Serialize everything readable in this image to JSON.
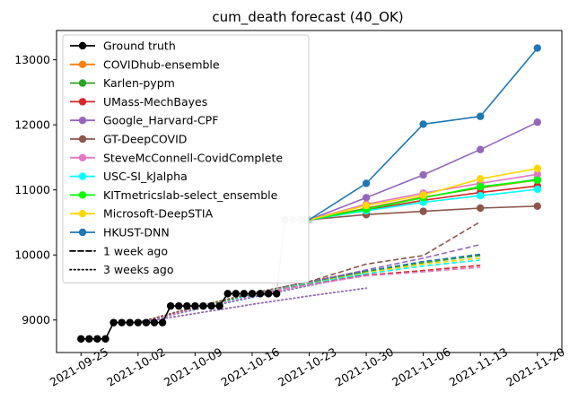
{
  "chart_data": {
    "type": "line",
    "title": "cum_death forecast (40_OK)",
    "xlabel": "",
    "ylabel": "",
    "x_ticks": [
      "2021-09-25",
      "2021-10-02",
      "2021-10-09",
      "2021-10-16",
      "2021-10-23",
      "2021-10-30",
      "2021-11-06",
      "2021-11-13",
      "2021-11-20"
    ],
    "y_ticks": [
      9000,
      10000,
      11000,
      12000,
      13000
    ],
    "xlim": [
      "2021-09-22",
      "2021-11-23"
    ],
    "ylim": [
      8500,
      13450
    ],
    "legend_position": "upper-left",
    "ground_truth": {
      "name": "Ground truth",
      "color": "#000000",
      "points": [
        [
          "2021-09-25",
          8710
        ],
        [
          "2021-09-26",
          8710
        ],
        [
          "2021-09-27",
          8710
        ],
        [
          "2021-09-28",
          8710
        ],
        [
          "2021-09-29",
          8960
        ],
        [
          "2021-09-30",
          8960
        ],
        [
          "2021-10-01",
          8960
        ],
        [
          "2021-10-02",
          8960
        ],
        [
          "2021-10-03",
          8960
        ],
        [
          "2021-10-04",
          8960
        ],
        [
          "2021-10-05",
          8960
        ],
        [
          "2021-10-06",
          9215
        ],
        [
          "2021-10-07",
          9215
        ],
        [
          "2021-10-08",
          9215
        ],
        [
          "2021-10-09",
          9215
        ],
        [
          "2021-10-10",
          9215
        ],
        [
          "2021-10-11",
          9215
        ],
        [
          "2021-10-12",
          9215
        ],
        [
          "2021-10-13",
          9405
        ],
        [
          "2021-10-14",
          9405
        ],
        [
          "2021-10-15",
          9405
        ],
        [
          "2021-10-16",
          9405
        ],
        [
          "2021-10-17",
          9405
        ],
        [
          "2021-10-18",
          9405
        ],
        [
          "2021-10-19",
          9405
        ]
      ]
    },
    "recent_truth": {
      "color": "#cccccc",
      "points": [
        [
          "2021-10-19",
          9405
        ],
        [
          "2021-10-20",
          10540
        ],
        [
          "2021-10-21",
          10540
        ],
        [
          "2021-10-22",
          10540
        ],
        [
          "2021-10-23",
          10540
        ]
      ]
    },
    "forecast_dates": [
      "2021-10-23",
      "2021-10-30",
      "2021-11-06",
      "2021-11-13",
      "2021-11-20"
    ],
    "series": [
      {
        "name": "COVIDhub-ensemble",
        "color": "#ff7f0e",
        "values": [
          10540,
          10720,
          10890,
          11030,
          11150
        ]
      },
      {
        "name": "Karlen-pypm",
        "color": "#2ca02c",
        "values": [
          10540,
          10710,
          10880,
          11040,
          11160
        ]
      },
      {
        "name": "UMass-MechBayes",
        "color": "#d62728",
        "values": [
          10540,
          10690,
          10840,
          10960,
          11060
        ]
      },
      {
        "name": "Google_Harvard-CPF",
        "color": "#9467bd",
        "values": [
          10540,
          10880,
          11230,
          11620,
          12040
        ]
      },
      {
        "name": "GT-DeepCOVID",
        "color": "#8c564b",
        "values": [
          10540,
          10620,
          10670,
          10720,
          10750
        ]
      },
      {
        "name": "SteveMcConnell-CovidComplete",
        "color": "#e377c2",
        "values": [
          10540,
          10780,
          10950,
          11100,
          11240
        ]
      },
      {
        "name": "USC-SI_kJalpha",
        "color": "#00ffff",
        "values": [
          10540,
          10680,
          10810,
          10910,
          11010
        ]
      },
      {
        "name": "KITmetricslab-select_ensemble",
        "color": "#00ff00",
        "values": [
          10540,
          10700,
          10880,
          11050,
          11150
        ]
      },
      {
        "name": "Microsoft-DeepSTIA",
        "color": "#ffd700",
        "values": [
          10540,
          10760,
          10920,
          11170,
          11330
        ]
      },
      {
        "name": "HKUST-DNN",
        "color": "#1f77b4",
        "values": [
          10540,
          11100,
          12010,
          12130,
          13180
        ]
      }
    ],
    "one_week_ago": [
      {
        "color": "#8c564b",
        "points": [
          [
            "2021-10-16",
            9400
          ],
          [
            "2021-10-23",
            9590
          ],
          [
            "2021-10-30",
            9860
          ],
          [
            "2021-11-06",
            9990
          ],
          [
            "2021-11-13",
            10510
          ]
        ]
      },
      {
        "color": "#9467bd",
        "points": [
          [
            "2021-10-16",
            9400
          ],
          [
            "2021-10-23",
            9580
          ],
          [
            "2021-10-30",
            9770
          ],
          [
            "2021-11-06",
            9950
          ],
          [
            "2021-11-13",
            10160
          ]
        ]
      },
      {
        "color": "#1f77b4",
        "points": [
          [
            "2021-10-16",
            9400
          ],
          [
            "2021-10-23",
            9570
          ],
          [
            "2021-10-30",
            9750
          ],
          [
            "2021-11-06",
            9900
          ],
          [
            "2021-11-13",
            10010
          ]
        ]
      },
      {
        "color": "#2ca02c",
        "points": [
          [
            "2021-10-16",
            9400
          ],
          [
            "2021-10-23",
            9565
          ],
          [
            "2021-10-30",
            9740
          ],
          [
            "2021-11-06",
            9880
          ],
          [
            "2021-11-13",
            9990
          ]
        ]
      },
      {
        "color": "#ffd700",
        "points": [
          [
            "2021-10-16",
            9400
          ],
          [
            "2021-10-23",
            9560
          ],
          [
            "2021-10-30",
            9725
          ],
          [
            "2021-11-06",
            9860
          ],
          [
            "2021-11-13",
            9950
          ]
        ]
      },
      {
        "color": "#00ffff",
        "points": [
          [
            "2021-10-16",
            9400
          ],
          [
            "2021-10-23",
            9555
          ],
          [
            "2021-10-30",
            9710
          ],
          [
            "2021-11-06",
            9830
          ],
          [
            "2021-11-13",
            9920
          ]
        ]
      },
      {
        "color": "#d62728",
        "points": [
          [
            "2021-10-16",
            9400
          ],
          [
            "2021-10-23",
            9545
          ],
          [
            "2021-10-30",
            9690
          ],
          [
            "2021-11-06",
            9760
          ],
          [
            "2021-11-13",
            9840
          ]
        ]
      },
      {
        "color": "#e377c2",
        "points": [
          [
            "2021-10-16",
            9400
          ],
          [
            "2021-10-23",
            9540
          ],
          [
            "2021-10-30",
            9680
          ],
          [
            "2021-11-06",
            9740
          ],
          [
            "2021-11-13",
            9810
          ]
        ]
      }
    ],
    "three_weeks_ago": [
      {
        "color": "#9467bd",
        "points": [
          [
            "2021-10-02",
            8960
          ],
          [
            "2021-10-09",
            9100
          ],
          [
            "2021-10-16",
            9240
          ],
          [
            "2021-10-23",
            9370
          ],
          [
            "2021-10-30",
            9490
          ]
        ]
      },
      {
        "color": "#1f77b4",
        "points": [
          [
            "2021-10-02",
            8960
          ],
          [
            "2021-10-09",
            9160
          ],
          [
            "2021-10-16",
            9350
          ],
          [
            "2021-10-23",
            9530
          ],
          [
            "2021-10-30",
            9700
          ]
        ]
      },
      {
        "color": "#00ffff",
        "points": [
          [
            "2021-10-02",
            8960
          ],
          [
            "2021-10-09",
            9180
          ],
          [
            "2021-10-16",
            9380
          ],
          [
            "2021-10-23",
            9560
          ],
          [
            "2021-10-30",
            9720
          ]
        ]
      },
      {
        "color": "#2ca02c",
        "points": [
          [
            "2021-10-02",
            8960
          ],
          [
            "2021-10-09",
            9190
          ],
          [
            "2021-10-16",
            9400
          ],
          [
            "2021-10-23",
            9580
          ],
          [
            "2021-10-30",
            9740
          ]
        ]
      },
      {
        "color": "#e377c2",
        "points": [
          [
            "2021-10-02",
            8960
          ],
          [
            "2021-10-09",
            9170
          ],
          [
            "2021-10-16",
            9360
          ],
          [
            "2021-10-23",
            9540
          ],
          [
            "2021-10-30",
            9690
          ]
        ]
      },
      {
        "color": "#8c564b",
        "points": [
          [
            "2021-10-02",
            8960
          ],
          [
            "2021-10-09",
            9200
          ],
          [
            "2021-10-16",
            9410
          ],
          [
            "2021-10-23",
            9590
          ],
          [
            "2021-10-30",
            9760
          ]
        ]
      }
    ],
    "legend_extra": [
      "1 week ago",
      "3 weeks ago"
    ]
  }
}
